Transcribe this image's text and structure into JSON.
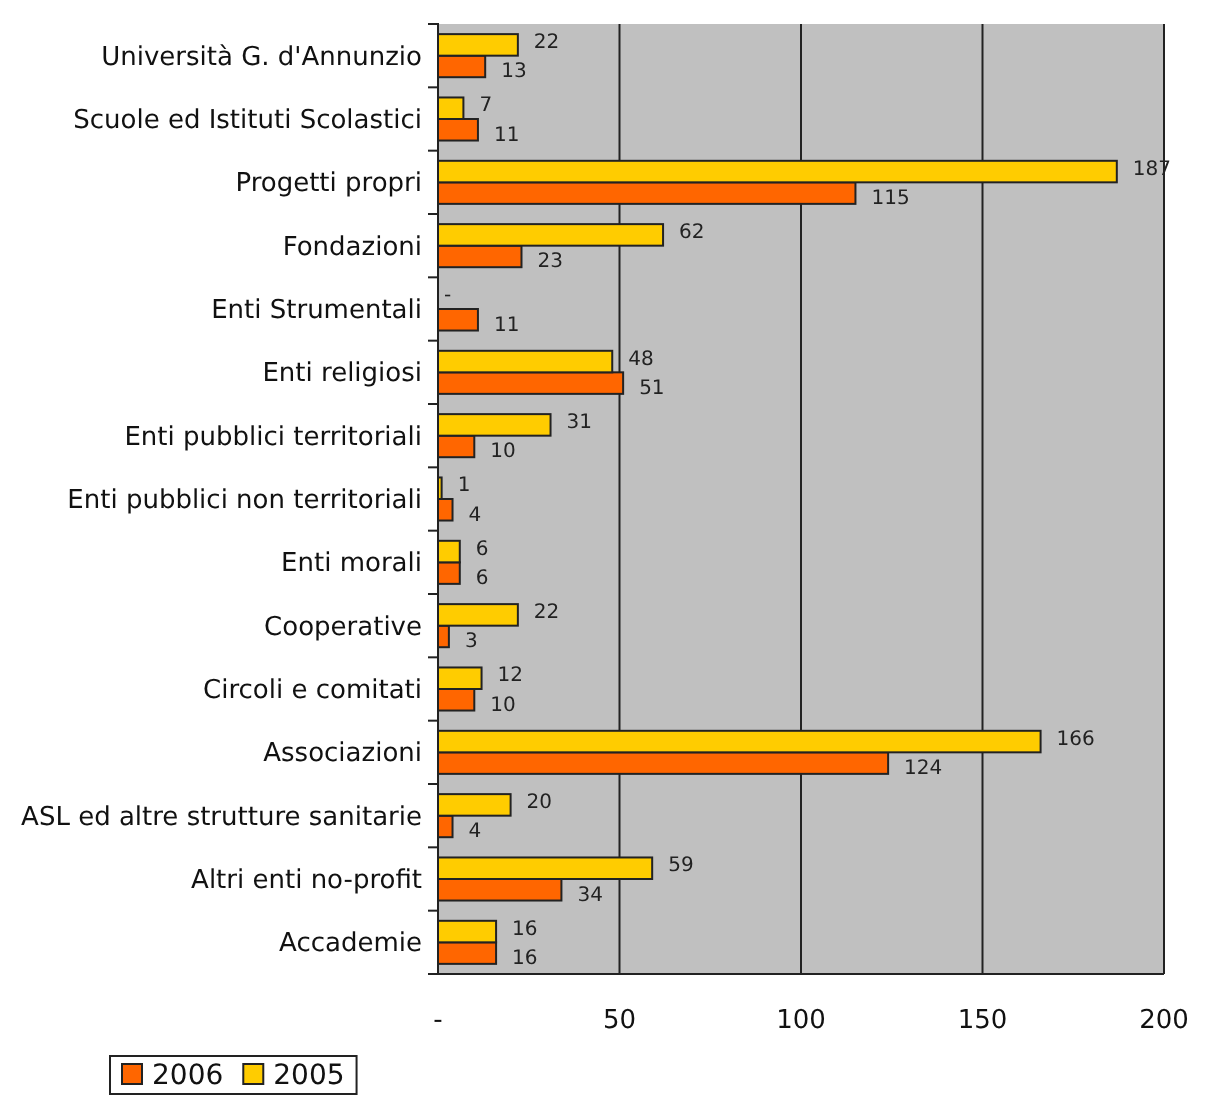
{
  "chart_data": {
    "type": "bar",
    "orientation": "horizontal",
    "categories": [
      "Università G. d'Annunzio",
      "Scuole ed Istituti Scolastici",
      "Progetti propri",
      "Fondazioni",
      "Enti Strumentali",
      "Enti religiosi",
      "Enti pubblici territoriali",
      "Enti pubblici non territoriali",
      "Enti morali",
      "Cooperative",
      "Circoli e comitati",
      "Associazioni",
      "ASL ed altre strutture sanitarie",
      "Altri enti no-profit",
      "Accademie"
    ],
    "series": [
      {
        "name": "2006",
        "color": "#ff6600",
        "values": [
          13,
          11,
          115,
          23,
          11,
          51,
          10,
          4,
          6,
          3,
          10,
          124,
          4,
          34,
          16
        ],
        "value_labels": [
          "13",
          "11",
          "115",
          "23",
          "11",
          "51",
          "10",
          "4",
          "6",
          "3",
          "10",
          "124",
          "4",
          "34",
          "16"
        ]
      },
      {
        "name": "2005",
        "color": "#ffcc00",
        "values": [
          22,
          7,
          187,
          62,
          0,
          48,
          31,
          1,
          6,
          22,
          12,
          166,
          20,
          59,
          16
        ],
        "value_labels": [
          "22",
          "7",
          "187",
          "62",
          "-",
          "48",
          "31",
          "1",
          "6",
          "22",
          "12",
          "166",
          "20",
          "59",
          "16"
        ]
      }
    ],
    "xlim": [
      0,
      200
    ],
    "xticks": [
      {
        "value": 0,
        "label": "-"
      },
      50,
      100,
      150,
      200
    ],
    "grid": "x",
    "legend": "bottom left"
  }
}
